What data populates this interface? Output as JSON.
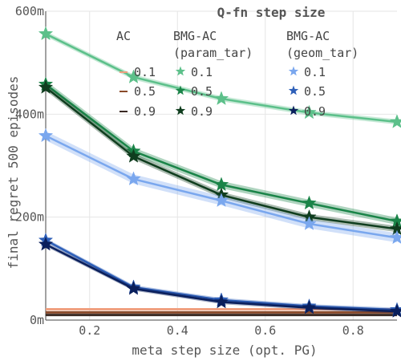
{
  "chart_data": {
    "type": "line",
    "xlabel": "meta step size (opt. PG)",
    "ylabel": "final regret 500 episodes",
    "xlim": [
      0.1,
      0.9
    ],
    "ylim": [
      0,
      600
    ],
    "xticks": [
      "0.2",
      "0.4",
      "0.6",
      "0.8"
    ],
    "yticks": [
      "0m",
      "200m",
      "400m",
      "600m"
    ],
    "grid": true,
    "legend_position": "top",
    "legend_title": "Q-fn step size",
    "legend_groups": [
      {
        "header": [
          "AC"
        ],
        "entries": [
          "0.1",
          "0.5",
          "0.9"
        ]
      },
      {
        "header": [
          "BMG-AC",
          "(param_tar)"
        ],
        "entries": [
          "0.1",
          "0.5",
          "0.9"
        ]
      },
      {
        "header": [
          "BMG-AC",
          "(geom_tar)"
        ],
        "entries": [
          "0.1",
          "0.5",
          "0.9"
        ]
      }
    ],
    "x": [
      0.1,
      0.3,
      0.5,
      0.7,
      0.9
    ],
    "series": [
      {
        "name": "0.1",
        "group": "AC",
        "color": "#f0a080",
        "values": [
          21,
          21,
          21,
          21,
          21
        ],
        "band": 2
      },
      {
        "name": "0.5",
        "group": "AC",
        "color": "#8a4a2a",
        "values": [
          15,
          15,
          15,
          15,
          15
        ],
        "band": 2
      },
      {
        "name": "0.9",
        "group": "AC",
        "color": "#3a2a24",
        "values": [
          10,
          10,
          10,
          10,
          10
        ],
        "band": 2
      },
      {
        "name": "0.1",
        "group": "BMG-AC (param_tar)",
        "color": "#5cc08a",
        "values": [
          556,
          472,
          430,
          403,
          385
        ],
        "band": 5
      },
      {
        "name": "0.5",
        "group": "BMG-AC (param_tar)",
        "color": "#1a8448",
        "values": [
          458,
          328,
          263,
          227,
          192
        ],
        "band": 7
      },
      {
        "name": "0.9",
        "group": "BMG-AC (param_tar)",
        "color": "#0f3d1e",
        "values": [
          452,
          318,
          243,
          200,
          177
        ],
        "band": 6
      },
      {
        "name": "0.1",
        "group": "BMG-AC (geom_tar)",
        "color": "#7aa7ee",
        "values": [
          358,
          274,
          232,
          187,
          160
        ],
        "band": 9
      },
      {
        "name": "0.5",
        "group": "BMG-AC (geom_tar)",
        "color": "#2e5fb8",
        "values": [
          155,
          64,
          39,
          27,
          20
        ],
        "band": 4
      },
      {
        "name": "0.9",
        "group": "BMG-AC (geom_tar)",
        "color": "#0a1f5c",
        "values": [
          147,
          61,
          35,
          24,
          17
        ],
        "band": 4
      }
    ]
  }
}
